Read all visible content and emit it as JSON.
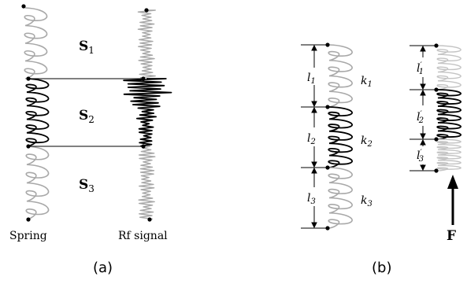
{
  "panel_a": {
    "segments": [
      {
        "label_main": "S",
        "label_sub": "1"
      },
      {
        "label_main": "S",
        "label_sub": "2"
      },
      {
        "label_main": "S",
        "label_sub": "3"
      }
    ],
    "spring_caption": "Spring",
    "signal_caption": "Rf signal",
    "caption": "(a)"
  },
  "panel_b": {
    "lengths": [
      {
        "main": "l",
        "sub": "1"
      },
      {
        "main": "l",
        "sub": "2"
      },
      {
        "main": "l",
        "sub": "3"
      }
    ],
    "stiffness": [
      {
        "main": "k",
        "sub": "1"
      },
      {
        "main": "k",
        "sub": "2"
      },
      {
        "main": "k",
        "sub": "3"
      }
    ],
    "compressed_lengths": [
      {
        "main": "l",
        "prime": "′",
        "sub": "1"
      },
      {
        "main": "l",
        "prime": "′",
        "sub": "2"
      },
      {
        "main": "l",
        "prime": "′",
        "sub": "3"
      }
    ],
    "force_label": "F",
    "caption": "(b)"
  },
  "colors": {
    "light_spring": "#a8a8a8",
    "dark_spring": "#000000",
    "lightest_spring": "#c4c4c4"
  }
}
